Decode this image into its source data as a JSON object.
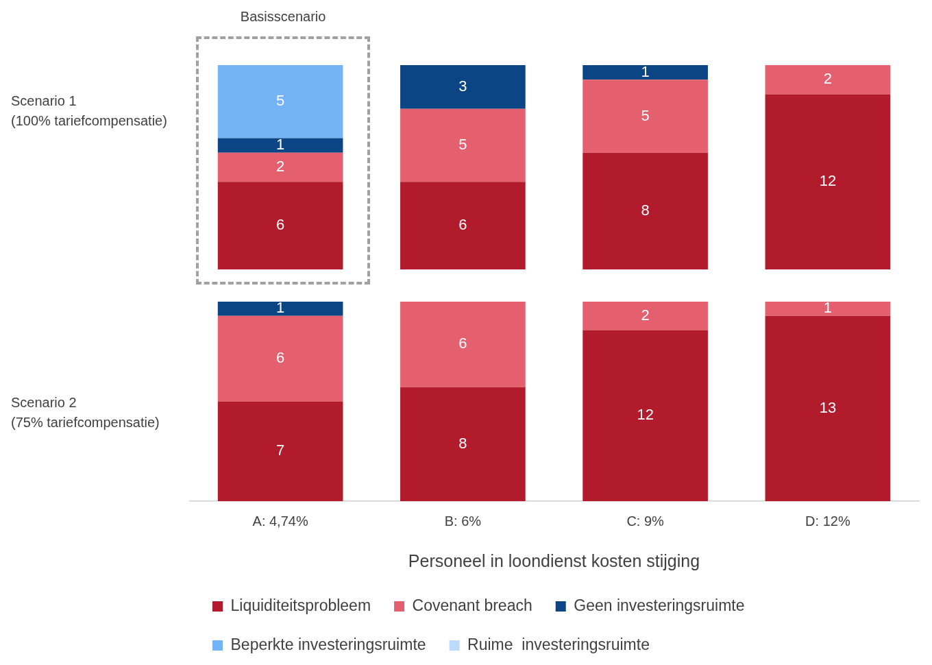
{
  "chart_data": [
    {
      "type": "bar",
      "ylabel": "Scenario 1\n(100% tariefcompensatie)",
      "categories": [
        null,
        null,
        null,
        null
      ],
      "stacked": true,
      "data_labels": true,
      "grid": false,
      "legend": false,
      "tick_labels": false,
      "annotations": [
        "Basisscenario"
      ],
      "series": [
        {
          "color": "#b11b2c",
          "values": [
            6,
            6,
            8,
            12
          ]
        },
        {
          "color": "#e5606f",
          "values": [
            2,
            5,
            5,
            2
          ]
        },
        {
          "color": "#0b4584",
          "values": [
            1,
            3,
            1,
            null
          ]
        },
        {
          "color": "#74b3f5",
          "values": [
            5,
            null,
            null,
            null
          ]
        }
      ]
    },
    {
      "type": "bar",
      "ylabel": "Scenario 2\n(75% tariefcompensatie)",
      "xlabel": "Personeel in loondienst kosten stijging",
      "categories": [
        "A: 4,74%",
        "B: 6%",
        "C: 9%",
        "D: 12%"
      ],
      "stacked": true,
      "data_labels": true,
      "grid": false,
      "legend": "bottom",
      "tick_labels": "x",
      "series": [
        {
          "name": "Liquiditeitsprobleem",
          "color": "#b11b2c",
          "values": [
            7,
            8,
            12,
            13
          ]
        },
        {
          "name": "Covenant breach",
          "color": "#e5606f",
          "values": [
            6,
            6,
            2,
            1
          ]
        },
        {
          "name": "Geen investeringsruimte",
          "color": "#0b4584",
          "values": [
            1,
            null,
            null,
            null
          ]
        },
        {
          "name": "Beperkte investeringsruimte",
          "color": "#74b3f5",
          "values": [
            null,
            null,
            null,
            null
          ]
        },
        {
          "name": "Ruime  investeringsruimte",
          "color": "#bcdbf9",
          "values": [
            null,
            null,
            null,
            null
          ]
        }
      ]
    }
  ]
}
